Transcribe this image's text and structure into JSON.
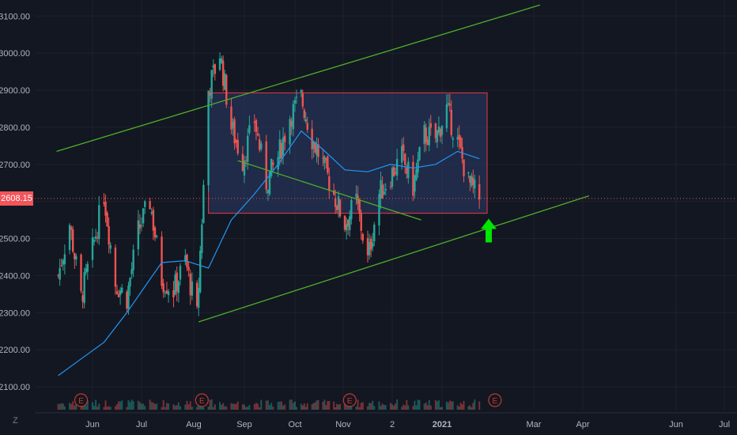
{
  "price_label": "2608.15",
  "scale_mode_label": "Z",
  "colors": {
    "background": "#131722",
    "grid": "#1e222d",
    "up": "#26a69a",
    "down": "#ef5350",
    "ma": "#2196f3",
    "trend": "#4caf2b",
    "box_border": "#f23645",
    "box_fill": "#2a3d67",
    "arrow": "#00e600",
    "earnings": "#c0392b"
  },
  "chart_data": {
    "type": "candlestick",
    "y_ticks": [
      "3100.00",
      "3000.00",
      "2900.00",
      "2800.00",
      "2700.00",
      "2600.00",
      "2500.00",
      "2400.00",
      "2300.00",
      "2200.00",
      "2100.00"
    ],
    "ylim": [
      2050,
      3150
    ],
    "x_ticks": [
      "Jun",
      "Jul",
      "Aug",
      "Sep",
      "Oct",
      "Nov",
      "2",
      "2021",
      "Mar",
      "Apr",
      "Jun",
      "Jul"
    ],
    "bold_x_ticks": [
      "2021"
    ],
    "last_price": 2608.15,
    "price_path": [
      {
        "date": "2020-05-11",
        "price": 2400
      },
      {
        "date": "2020-05-18",
        "price": 2540
      },
      {
        "date": "2020-05-25",
        "price": 2340
      },
      {
        "date": "2020-06-01",
        "price": 2470
      },
      {
        "date": "2020-06-08",
        "price": 2620
      },
      {
        "date": "2020-06-15",
        "price": 2380
      },
      {
        "date": "2020-06-22",
        "price": 2340
      },
      {
        "date": "2020-06-29",
        "price": 2520
      },
      {
        "date": "2020-07-06",
        "price": 2600
      },
      {
        "date": "2020-07-13",
        "price": 2390
      },
      {
        "date": "2020-07-20",
        "price": 2360
      },
      {
        "date": "2020-07-27",
        "price": 2440
      },
      {
        "date": "2020-08-03",
        "price": 2290
      },
      {
        "date": "2020-08-10",
        "price": 2900
      },
      {
        "date": "2020-08-17",
        "price": 3000
      },
      {
        "date": "2020-08-24",
        "price": 2800
      },
      {
        "date": "2020-08-31",
        "price": 2710
      },
      {
        "date": "2020-09-07",
        "price": 2820
      },
      {
        "date": "2020-09-14",
        "price": 2650
      },
      {
        "date": "2020-09-21",
        "price": 2720
      },
      {
        "date": "2020-09-28",
        "price": 2830
      },
      {
        "date": "2020-10-05",
        "price": 2880
      },
      {
        "date": "2020-10-12",
        "price": 2770
      },
      {
        "date": "2020-10-19",
        "price": 2700
      },
      {
        "date": "2020-10-26",
        "price": 2620
      },
      {
        "date": "2020-11-02",
        "price": 2540
      },
      {
        "date": "2020-11-09",
        "price": 2600
      },
      {
        "date": "2020-11-16",
        "price": 2440
      },
      {
        "date": "2020-11-23",
        "price": 2620
      },
      {
        "date": "2020-11-30",
        "price": 2670
      },
      {
        "date": "2020-12-07",
        "price": 2720
      },
      {
        "date": "2020-12-14",
        "price": 2640
      },
      {
        "date": "2020-12-21",
        "price": 2780
      },
      {
        "date": "2020-12-28",
        "price": 2770
      },
      {
        "date": "2021-01-04",
        "price": 2850
      },
      {
        "date": "2021-01-11",
        "price": 2760
      },
      {
        "date": "2021-01-18",
        "price": 2650
      },
      {
        "date": "2021-01-25",
        "price": 2608
      }
    ],
    "moving_average": [
      {
        "date": "2020-05-11",
        "price": 2130
      },
      {
        "date": "2020-05-25",
        "price": 2175
      },
      {
        "date": "2020-06-08",
        "price": 2220
      },
      {
        "date": "2020-06-22",
        "price": 2300
      },
      {
        "date": "2020-07-06",
        "price": 2390
      },
      {
        "date": "2020-07-13",
        "price": 2435
      },
      {
        "date": "2020-07-27",
        "price": 2440
      },
      {
        "date": "2020-08-10",
        "price": 2420
      },
      {
        "date": "2020-08-24",
        "price": 2550
      },
      {
        "date": "2020-09-07",
        "price": 2620
      },
      {
        "date": "2020-09-21",
        "price": 2700
      },
      {
        "date": "2020-10-05",
        "price": 2790
      },
      {
        "date": "2020-10-19",
        "price": 2740
      },
      {
        "date": "2020-11-02",
        "price": 2685
      },
      {
        "date": "2020-11-16",
        "price": 2680
      },
      {
        "date": "2020-11-30",
        "price": 2700
      },
      {
        "date": "2020-12-14",
        "price": 2690
      },
      {
        "date": "2020-12-28",
        "price": 2700
      },
      {
        "date": "2021-01-11",
        "price": 2735
      },
      {
        "date": "2021-01-25",
        "price": 2715
      }
    ],
    "drawings": {
      "upper_channel": [
        {
          "date": "2020-05-10",
          "price": 2735
        },
        {
          "date": "2021-03-05",
          "price": 3130
        }
      ],
      "lower_channel": [
        {
          "date": "2020-08-04",
          "price": 2275
        },
        {
          "date": "2021-04-05",
          "price": 2615
        }
      ],
      "inner_trendline": [
        {
          "date": "2020-08-28",
          "price": 2710
        },
        {
          "date": "2020-12-19",
          "price": 2550
        }
      ],
      "range_box": {
        "from": "2020-08-10",
        "to": "2021-01-30",
        "top": 2893,
        "bottom": 2568
      },
      "up_arrow": {
        "date": "2021-01-31",
        "price": 2485
      }
    },
    "earnings_markers": [
      "2020-05-25",
      "2020-08-06",
      "2020-11-05",
      "2021-02-04"
    ],
    "earnings_label": "E"
  }
}
